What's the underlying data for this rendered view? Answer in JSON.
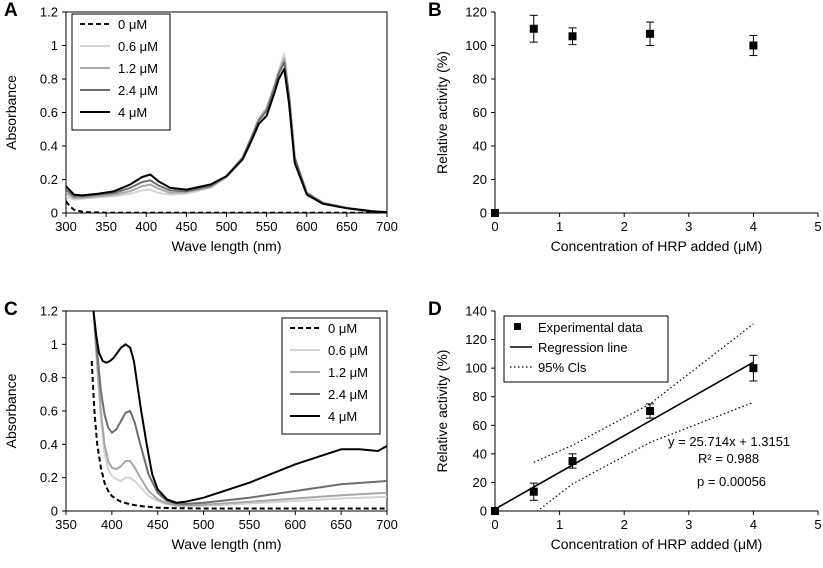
{
  "chart_data": [
    {
      "panel": "A",
      "type": "line",
      "title": "",
      "xlabel": "Wave length (nm)",
      "ylabel": "Absorbance",
      "xlim": [
        300,
        700
      ],
      "ylim": [
        0,
        1.2
      ],
      "xticks": [
        300,
        350,
        400,
        450,
        500,
        550,
        600,
        650,
        700
      ],
      "yticks": [
        0,
        0.2,
        0.4,
        0.6,
        0.8,
        1,
        1.2
      ],
      "ytick_labels": [
        "0",
        "0.2",
        "0.4",
        "0.6",
        "0.8",
        "1",
        "1.2"
      ],
      "legend": "top-left",
      "series": [
        {
          "name": "0 μM",
          "color": "#000000",
          "dash": true,
          "x": [
            300,
            305,
            310,
            320,
            330,
            350,
            400,
            500,
            600,
            700
          ],
          "y": [
            0.07,
            0.04,
            0.02,
            0.008,
            0.004,
            0.002,
            0.002,
            0.002,
            0.002,
            0.002
          ]
        },
        {
          "name": "0.6 μM",
          "color": "#d4d4d4",
          "dash": false,
          "x": [
            300,
            310,
            320,
            340,
            360,
            380,
            395,
            405,
            415,
            430,
            450,
            480,
            500,
            520,
            530,
            540,
            550,
            560,
            565,
            572,
            578,
            585,
            600,
            620,
            650,
            680,
            700
          ],
          "y": [
            0.1,
            0.08,
            0.085,
            0.095,
            0.1,
            0.115,
            0.135,
            0.14,
            0.12,
            0.11,
            0.115,
            0.15,
            0.21,
            0.32,
            0.43,
            0.56,
            0.63,
            0.77,
            0.85,
            0.95,
            0.7,
            0.33,
            0.12,
            0.06,
            0.03,
            0.012,
            0.005
          ]
        },
        {
          "name": "1.2 μM",
          "color": "#a8a8a8",
          "dash": false,
          "x": [
            300,
            310,
            320,
            340,
            360,
            380,
            395,
            405,
            415,
            430,
            450,
            480,
            500,
            520,
            530,
            540,
            550,
            560,
            565,
            572,
            578,
            585,
            600,
            620,
            650,
            680,
            700
          ],
          "y": [
            0.12,
            0.09,
            0.09,
            0.1,
            0.11,
            0.13,
            0.16,
            0.17,
            0.145,
            0.12,
            0.125,
            0.155,
            0.22,
            0.33,
            0.44,
            0.56,
            0.62,
            0.76,
            0.84,
            0.92,
            0.7,
            0.33,
            0.12,
            0.06,
            0.03,
            0.012,
            0.005
          ]
        },
        {
          "name": "2.4 μM",
          "color": "#6e6e6e",
          "dash": false,
          "x": [
            300,
            310,
            320,
            340,
            360,
            380,
            395,
            405,
            415,
            430,
            450,
            480,
            500,
            520,
            530,
            540,
            550,
            560,
            565,
            572,
            578,
            585,
            600,
            620,
            650,
            680,
            700
          ],
          "y": [
            0.14,
            0.1,
            0.1,
            0.11,
            0.12,
            0.15,
            0.185,
            0.195,
            0.165,
            0.135,
            0.13,
            0.16,
            0.22,
            0.33,
            0.44,
            0.55,
            0.61,
            0.75,
            0.83,
            0.9,
            0.7,
            0.33,
            0.12,
            0.06,
            0.03,
            0.012,
            0.005
          ]
        },
        {
          "name": "4 μM",
          "color": "#000000",
          "dash": false,
          "x": [
            300,
            310,
            320,
            340,
            360,
            380,
            395,
            405,
            415,
            430,
            450,
            480,
            500,
            520,
            530,
            540,
            550,
            560,
            565,
            572,
            578,
            585,
            600,
            620,
            650,
            680,
            700
          ],
          "y": [
            0.16,
            0.11,
            0.105,
            0.115,
            0.13,
            0.17,
            0.215,
            0.23,
            0.19,
            0.15,
            0.14,
            0.17,
            0.22,
            0.32,
            0.42,
            0.53,
            0.58,
            0.72,
            0.8,
            0.86,
            0.65,
            0.3,
            0.11,
            0.055,
            0.028,
            0.01,
            0.004
          ]
        }
      ]
    },
    {
      "panel": "B",
      "type": "scatter",
      "title": "",
      "xlabel": "Concentration of HRP added (μM)",
      "ylabel": "Relative activity (%)",
      "xlim": [
        0,
        5
      ],
      "ylim": [
        0,
        120
      ],
      "xticks": [
        0,
        1,
        2,
        3,
        4,
        5
      ],
      "yticks": [
        0,
        20,
        40,
        60,
        80,
        100,
        120
      ],
      "ytick_labels": [
        "0",
        "20",
        "40",
        "60",
        "80",
        "100",
        "120"
      ],
      "points": [
        {
          "x": 0,
          "y": 0,
          "err": 0
        },
        {
          "x": 0.6,
          "y": 110,
          "err": 8
        },
        {
          "x": 1.2,
          "y": 105.5,
          "err": 5
        },
        {
          "x": 2.4,
          "y": 107,
          "err": 7
        },
        {
          "x": 4,
          "y": 100,
          "err": 6
        }
      ]
    },
    {
      "panel": "C",
      "type": "line",
      "title": "",
      "xlabel": "Wave length (nm)",
      "ylabel": "Absorbance",
      "xlim": [
        350,
        700
      ],
      "ylim": [
        0,
        1.2
      ],
      "xticks": [
        350,
        400,
        450,
        500,
        550,
        600,
        650,
        700
      ],
      "yticks": [
        0,
        0.2,
        0.4,
        0.6,
        0.8,
        1,
        1.2
      ],
      "ytick_labels": [
        "0",
        "0.2",
        "0.4",
        "0.6",
        "0.8",
        "1",
        "1.2"
      ],
      "legend": "top-right",
      "series": [
        {
          "name": "0 μM",
          "color": "#000000",
          "dash": true,
          "x": [
            378,
            381,
            384,
            388,
            392,
            396,
            400,
            405,
            410,
            420,
            430,
            440,
            450,
            470,
            500,
            600,
            700
          ],
          "y": [
            0.9,
            0.6,
            0.4,
            0.26,
            0.17,
            0.12,
            0.09,
            0.07,
            0.055,
            0.04,
            0.03,
            0.025,
            0.02,
            0.017,
            0.015,
            0.015,
            0.015
          ]
        },
        {
          "name": "0.6 μM",
          "color": "#d4d4d4",
          "dash": false,
          "x": [
            380,
            384,
            388,
            392,
            396,
            400,
            405,
            410,
            415,
            420,
            425,
            430,
            440,
            450,
            460,
            470,
            480,
            500,
            550,
            600,
            650,
            700
          ],
          "y": [
            1.2,
            0.85,
            0.55,
            0.35,
            0.25,
            0.21,
            0.19,
            0.18,
            0.2,
            0.2,
            0.18,
            0.15,
            0.09,
            0.06,
            0.04,
            0.03,
            0.028,
            0.03,
            0.045,
            0.06,
            0.075,
            0.085
          ]
        },
        {
          "name": "1.2 μM",
          "color": "#a8a8a8",
          "dash": false,
          "x": [
            380,
            384,
            388,
            392,
            396,
            400,
            405,
            410,
            415,
            420,
            425,
            430,
            440,
            450,
            460,
            470,
            480,
            500,
            550,
            600,
            650,
            700
          ],
          "y": [
            1.2,
            0.9,
            0.6,
            0.4,
            0.3,
            0.26,
            0.25,
            0.27,
            0.3,
            0.3,
            0.26,
            0.21,
            0.12,
            0.07,
            0.045,
            0.035,
            0.033,
            0.037,
            0.055,
            0.075,
            0.095,
            0.11
          ]
        },
        {
          "name": "2.4 μM",
          "color": "#6e6e6e",
          "dash": false,
          "x": [
            380,
            384,
            388,
            392,
            396,
            400,
            405,
            410,
            415,
            420,
            425,
            430,
            440,
            450,
            460,
            470,
            480,
            500,
            550,
            600,
            650,
            700
          ],
          "y": [
            1.2,
            0.95,
            0.72,
            0.58,
            0.5,
            0.47,
            0.49,
            0.54,
            0.59,
            0.6,
            0.53,
            0.42,
            0.22,
            0.11,
            0.06,
            0.045,
            0.042,
            0.05,
            0.08,
            0.12,
            0.16,
            0.18
          ]
        },
        {
          "name": "4 μM",
          "color": "#000000",
          "dash": false,
          "x": [
            380,
            383,
            386,
            390,
            394,
            398,
            402,
            406,
            410,
            415,
            420,
            424,
            428,
            432,
            438,
            444,
            450,
            460,
            470,
            480,
            500,
            550,
            600,
            650,
            670,
            690,
            700
          ],
          "y": [
            1.2,
            1.05,
            0.95,
            0.9,
            0.89,
            0.9,
            0.92,
            0.95,
            0.98,
            1.0,
            0.98,
            0.9,
            0.75,
            0.6,
            0.4,
            0.22,
            0.13,
            0.07,
            0.05,
            0.055,
            0.08,
            0.17,
            0.28,
            0.37,
            0.37,
            0.36,
            0.39
          ]
        }
      ]
    },
    {
      "panel": "D",
      "type": "scatter",
      "title": "",
      "xlabel": "Concentration of HRP added (μM)",
      "ylabel": "Relative activity (%)",
      "xlim": [
        0,
        5
      ],
      "ylim": [
        0,
        140
      ],
      "xticks": [
        0,
        1,
        2,
        3,
        4,
        5
      ],
      "yticks": [
        0,
        20,
        40,
        60,
        80,
        100,
        120,
        140
      ],
      "ytick_labels": [
        "0",
        "20",
        "40",
        "60",
        "80",
        "100",
        "120",
        "140"
      ],
      "legend": "top-left",
      "legend_entries": [
        "Experimental data",
        "Regression line",
        "95% Cls"
      ],
      "points": [
        {
          "x": 0,
          "y": 0,
          "err": 0
        },
        {
          "x": 0.6,
          "y": 13.5,
          "err": 6
        },
        {
          "x": 1.2,
          "y": 35,
          "err": 5
        },
        {
          "x": 2.4,
          "y": 70,
          "err": 5
        },
        {
          "x": 4,
          "y": 100,
          "err": 9
        }
      ],
      "regression": {
        "slope": 25.714,
        "intercept": 1.3151,
        "x_range": [
          0,
          4
        ]
      },
      "ci_upper": {
        "x": [
          0.6,
          1.2,
          2.4,
          4
        ],
        "y": [
          34,
          46,
          75,
          131
        ]
      },
      "ci_lower": {
        "x": [
          0.6,
          1.2,
          2.4,
          4
        ],
        "y": [
          -2,
          19,
          48,
          76
        ]
      },
      "annotations": [
        "y = 25.714x + 1.3151",
        "R² = 0.988",
        "p = 0.00056"
      ]
    }
  ]
}
